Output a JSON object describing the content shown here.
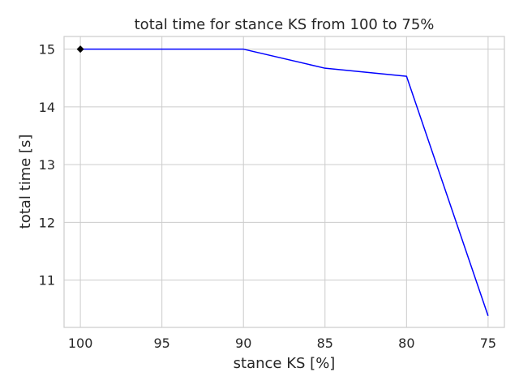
{
  "chart_data": {
    "type": "line",
    "title": "total time for stance KS from 100 to 75%",
    "xlabel": "stance KS [%]",
    "ylabel": "total time [s]",
    "x_reversed": true,
    "xlim": [
      101,
      74
    ],
    "ylim": [
      10.18,
      15.22
    ],
    "xticks": [
      100,
      95,
      90,
      85,
      80,
      75
    ],
    "yticks": [
      11,
      12,
      13,
      14,
      15
    ],
    "grid": true,
    "series": [
      {
        "x": [
          100,
          95,
          90,
          85,
          80,
          75
        ],
        "y": [
          15.0,
          15.0,
          15.0,
          14.67,
          14.53,
          10.38
        ],
        "color": "#0000ff"
      }
    ],
    "markers": [
      {
        "x": 100,
        "y": 15.0,
        "shape": "diamond",
        "color": "#000000"
      }
    ]
  }
}
